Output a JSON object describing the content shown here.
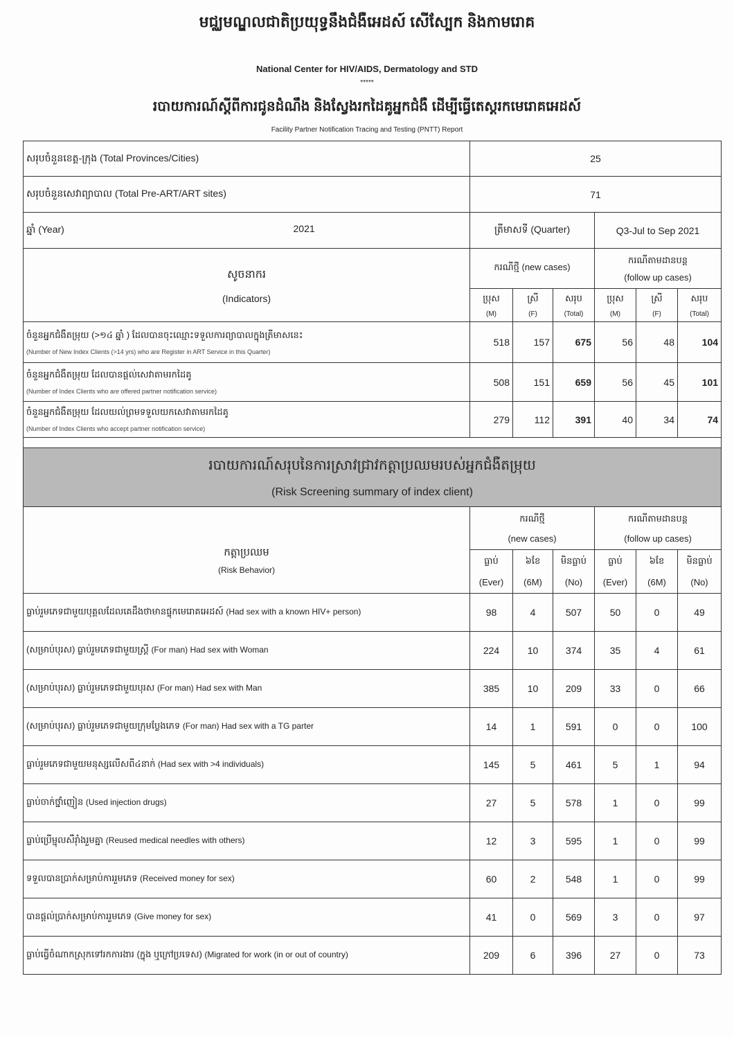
{
  "header": {
    "title_kh": "មជ្ឈមណ្ឌលជាតិប្រយុទ្ធនឹងជំងឺអេដស៍ សើស្បែក និងកាមរោគ",
    "title_en": "National Center for HIV/AIDS, Dermatology and STD",
    "stars": "*****",
    "subtitle_kh": "របាយការណ៍ស្តីពីការជូនដំណឹង និងស្វែងរកដៃគូអ្នកជំងឺ ដើម្បីធ្វើតេស្តរកមេរោគអេដស៍",
    "subtitle_en": "Facility Partner Notification Tracing and Testing (PNTT) Report"
  },
  "summary": {
    "provinces_label": "សរុបចំនួនខេត្ត-ក្រុង (Total Provinces/Cities)",
    "provinces_value": "25",
    "sites_label": "សរុបចំនួនសេវាព្យាបាល (Total Pre-ART/ART sites)",
    "sites_value": "71",
    "year_label": "ឆ្នាំ (Year)",
    "year_value": "2021",
    "quarter_label": "ត្រីមាសទី (Quarter)",
    "quarter_value": "Q3-Jul to Sep 2021"
  },
  "indicators": {
    "header_kh": "សូចនាករ",
    "header_en": "(Indicators)",
    "new_cases": "ករណីថ្មី (new cases)",
    "follow_kh": "ករណីតាមដានបន្ត",
    "follow_en": "(follow up cases)",
    "cols": [
      {
        "kh": "ប្រុស",
        "en": "(M)"
      },
      {
        "kh": "ស្រី",
        "en": "(F)"
      },
      {
        "kh": "សរុប",
        "en": "(Total)"
      },
      {
        "kh": "ប្រុស",
        "en": "(M)"
      },
      {
        "kh": "ស្រី",
        "en": "(F)"
      },
      {
        "kh": "សរុប",
        "en": "(Total)"
      }
    ],
    "rows": [
      {
        "kh": "ចំនួនអ្នកជំងឺតម្រុយ (>១៤ ឆ្នាំ ) ដែលបានចុះឈ្មោះទទួលការព្យាបាលក្នុងត្រីមាសនេះ",
        "en": "(Number of New Index Clients (>14 yrs)  who are Register in ART Service in this Quarter)",
        "values": [
          "518",
          "157",
          "675",
          "56",
          "48",
          "104"
        ]
      },
      {
        "kh": "ចំនួនអ្នកជំងឺតម្រុយ ដែលបានផ្តល់សេវាតាមរកដៃគូ",
        "en": "(Number of Index Clients who are offered partner notification service)",
        "values": [
          "508",
          "151",
          "659",
          "56",
          "45",
          "101"
        ]
      },
      {
        "kh": "ចំនួនអ្នកជំងឺតម្រុយ ដែលយល់ព្រមទទួលយកសេវាតាមរកដៃគូ",
        "en": "(Number of Index Clients who accept partner notification service)",
        "values": [
          "279",
          "112",
          "391",
          "40",
          "34",
          "74"
        ]
      }
    ]
  },
  "risk": {
    "band_kh": "របាយការណ៍សរុបនៃការស្រាវជ្រាវកត្តាប្រឈមរបស់អ្នកជំងឺតម្រុយ",
    "band_en": "(Risk Screening summary of index client)",
    "header_kh": "កត្តាប្រឈម",
    "header_en": "(Risk Behavior)",
    "new_kh": "ករណីថ្មី",
    "new_en": "(new cases)",
    "follow_kh": "ករណីតាមដានបន្ត",
    "follow_en": "(follow up cases)",
    "cols": [
      {
        "kh": "ធ្លាប់",
        "en": "(Ever)"
      },
      {
        "kh": "៦ខែ",
        "en": "(6M)"
      },
      {
        "kh": "មិនធ្លាប់",
        "en": "(No)"
      },
      {
        "kh": "ធ្លាប់",
        "en": "(Ever)"
      },
      {
        "kh": "៦ខែ",
        "en": "(6M)"
      },
      {
        "kh": "មិនធ្លាប់",
        "en": "(No)"
      }
    ],
    "rows": [
      {
        "kh": "ធ្លាប់រួមភេទជាមួយបុគ្គលដែលគេដឹងថាមានផ្ទុកមេរោគអេដស៍",
        "en": "(Had sex with a known HIV+ person)",
        "values": [
          "98",
          "4",
          "507",
          "50",
          "0",
          "49"
        ]
      },
      {
        "kh": "(សម្រាប់បុរស) ធ្លាប់រួមភេទជាមួយស្ត្រី",
        "en": "(For man) Had sex with Woman",
        "values": [
          "224",
          "10",
          "374",
          "35",
          "4",
          "61"
        ]
      },
      {
        "kh": "(សម្រាប់បុរស) ធ្លាប់រួមភេទជាមួយបុរស",
        "en": "(For man) Had sex with Man",
        "values": [
          "385",
          "10",
          "209",
          "33",
          "0",
          "66"
        ]
      },
      {
        "kh": "(សម្រាប់បុរស) ធ្លាប់រួមភេទជាមួយក្រុមប្លែងភេទ",
        "en": "(For man) Had sex with a TG parter",
        "values": [
          "14",
          "1",
          "591",
          "0",
          "0",
          "100"
        ]
      },
      {
        "kh": "ធ្លាប់រួមភេទជាមួយមនុស្សលើសពី៤នាក់",
        "en": "(Had sex with >4 individuals)",
        "values": [
          "145",
          "5",
          "461",
          "5",
          "1",
          "94"
        ]
      },
      {
        "kh": "ធ្លាប់ចាក់ថ្នាំញៀន",
        "en": "(Used injection drugs)",
        "values": [
          "27",
          "5",
          "578",
          "1",
          "0",
          "99"
        ]
      },
      {
        "kh": "ធ្លាប់ប្រើម្ជុលសឺរ៉ាំងរួមគ្នា",
        "en": "(Reused medical needles with others)",
        "values": [
          "12",
          "3",
          "595",
          "1",
          "0",
          "99"
        ]
      },
      {
        "kh": "ទទួលបានប្រាក់សម្រាប់ការរួមភេទ",
        "en": "(Received money for sex)",
        "values": [
          "60",
          "2",
          "548",
          "1",
          "0",
          "99"
        ]
      },
      {
        "kh": "បានផ្តល់ប្រាក់សម្រាប់ការរួមភេទ",
        "en": "(Give money for sex)",
        "values": [
          "41",
          "0",
          "569",
          "3",
          "0",
          "97"
        ]
      },
      {
        "kh": "ធ្លាប់ធ្វើចំណាកស្រុកទៅរកការងារ (ក្នុង ឬក្រៅប្រទេស)",
        "en": "(Migrated for work (in or out of country)",
        "values": [
          "209",
          "6",
          "396",
          "27",
          "0",
          "73"
        ]
      }
    ]
  }
}
